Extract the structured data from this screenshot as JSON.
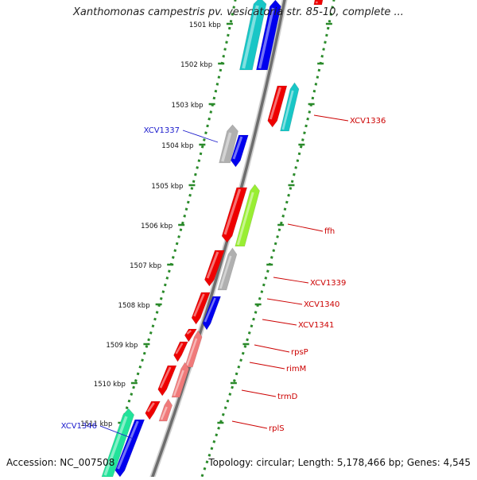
{
  "title": "Xanthomonas campestris pv. vesicatoria str. 85-10, complete ...",
  "accession": "Accession: NC_007508",
  "topology": "Topology: circular; Length: 5,178,466 bp; Genes: 4,545",
  "kbp_labels": [
    "1501 kbp",
    "1502 kbp",
    "1503 kbp",
    "1504 kbp",
    "1505 kbp",
    "1506 kbp",
    "1507 kbp",
    "1508 kbp",
    "1509 kbp",
    "1510 kbp",
    "1511 kbp"
  ],
  "gene_labels": [
    {
      "name": "XCV1337",
      "strand": "left",
      "color": "#1a1acc"
    },
    {
      "name": "XCV1336",
      "strand": "right",
      "color": "#cc0000"
    },
    {
      "name": "ffh",
      "strand": "right",
      "color": "#cc0000"
    },
    {
      "name": "XCV1339",
      "strand": "right",
      "color": "#cc0000"
    },
    {
      "name": "XCV1340",
      "strand": "right",
      "color": "#cc0000"
    },
    {
      "name": "XCV1341",
      "strand": "right",
      "color": "#cc0000"
    },
    {
      "name": "rpsP",
      "strand": "right",
      "color": "#cc0000"
    },
    {
      "name": "rimM",
      "strand": "right",
      "color": "#cc0000"
    },
    {
      "name": "trmD",
      "strand": "right",
      "color": "#cc0000"
    },
    {
      "name": "rplS",
      "strand": "right",
      "color": "#cc0000"
    },
    {
      "name": "XCV1346",
      "strand": "left",
      "color": "#1a1acc"
    }
  ],
  "colors": {
    "backbone": "#888888",
    "tick_dots": "#2a8a2a",
    "red": "#ee0000",
    "blue": "#0000ee",
    "cyan": "#19c6c6",
    "gray": "#b0b0b0",
    "lime": "#99ee33",
    "pink": "#f07a7a",
    "steel": "#3a6fcf",
    "teal": "#22e39a"
  }
}
